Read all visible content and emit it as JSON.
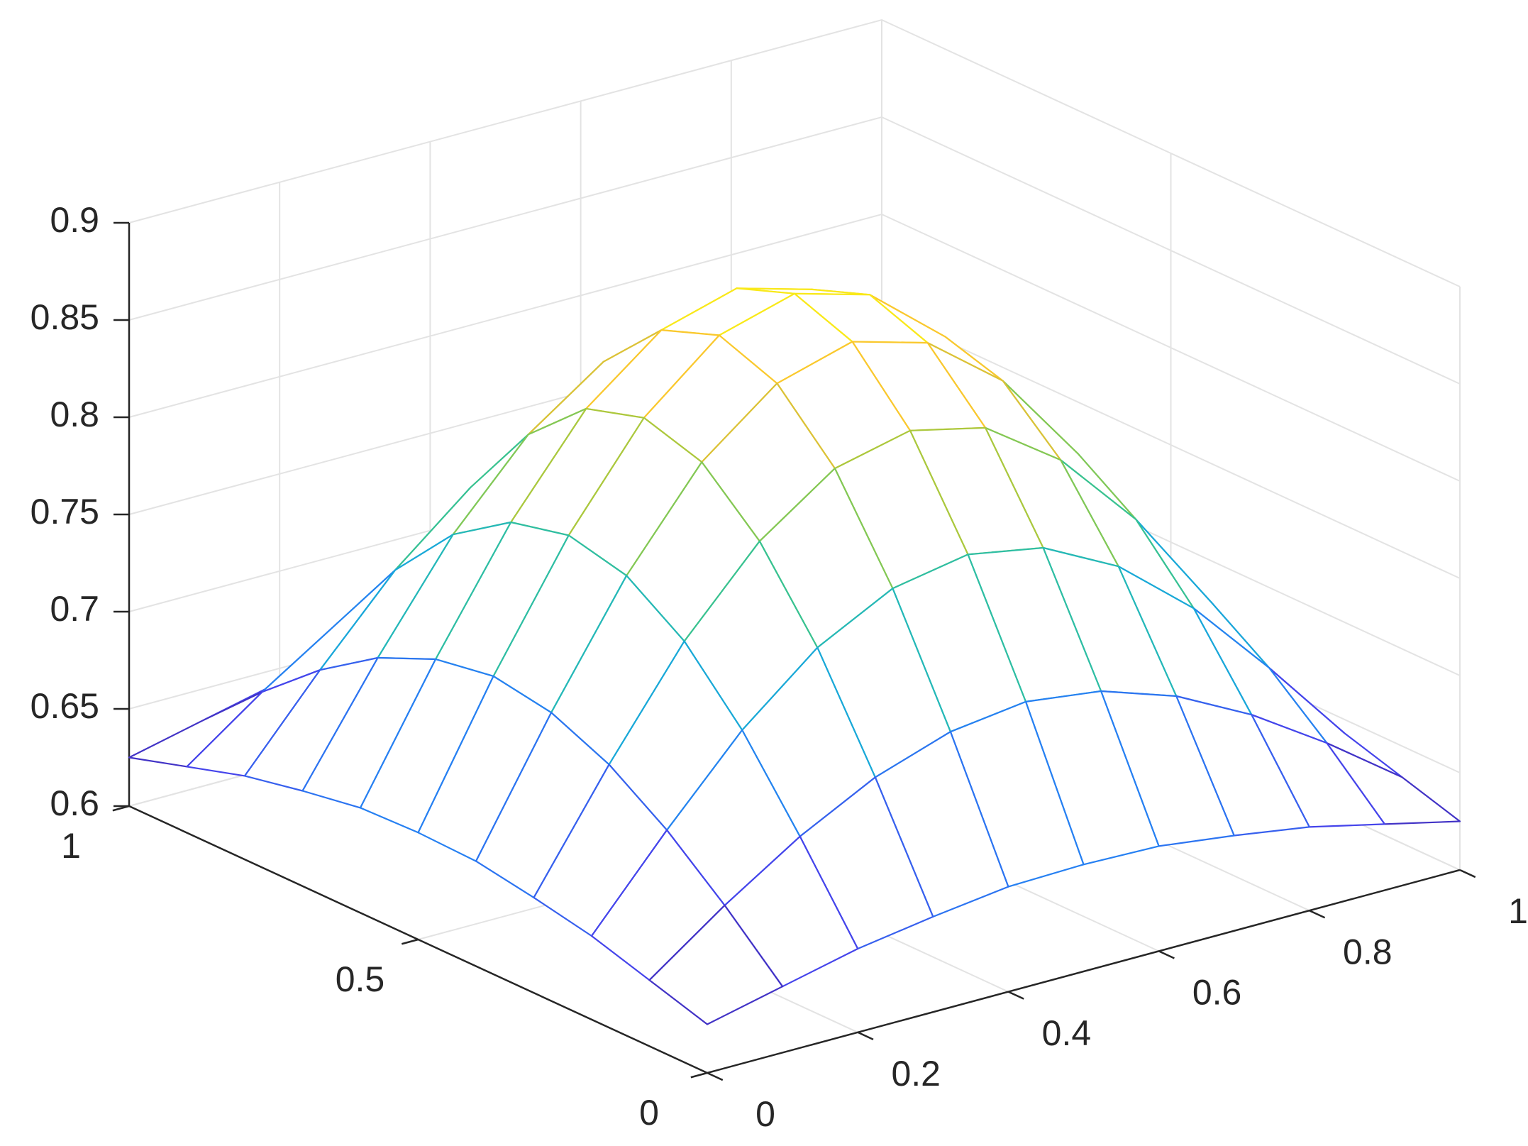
{
  "chart_data": {
    "type": "mesh",
    "colormap": "parula",
    "grid": true,
    "x": [
      0,
      0.1,
      0.2,
      0.3,
      0.4,
      0.5,
      0.6,
      0.7,
      0.8,
      0.9,
      1
    ],
    "y": [
      0,
      0.1,
      0.2,
      0.3,
      0.4,
      0.5,
      0.6,
      0.7,
      0.8,
      0.9,
      1
    ],
    "z": [
      [
        0.625,
        0.634,
        0.643,
        0.649,
        0.654,
        0.655,
        0.654,
        0.649,
        0.643,
        0.634,
        0.625
      ],
      [
        0.634,
        0.662,
        0.687,
        0.707,
        0.72,
        0.725,
        0.72,
        0.707,
        0.687,
        0.662,
        0.634
      ],
      [
        0.643,
        0.687,
        0.728,
        0.76,
        0.78,
        0.787,
        0.78,
        0.76,
        0.728,
        0.687,
        0.643
      ],
      [
        0.649,
        0.707,
        0.76,
        0.801,
        0.828,
        0.837,
        0.828,
        0.801,
        0.76,
        0.707,
        0.649
      ],
      [
        0.654,
        0.72,
        0.78,
        0.828,
        0.858,
        0.869,
        0.858,
        0.828,
        0.78,
        0.72,
        0.654
      ],
      [
        0.655,
        0.725,
        0.787,
        0.837,
        0.869,
        0.88,
        0.869,
        0.837,
        0.787,
        0.725,
        0.655
      ],
      [
        0.654,
        0.72,
        0.78,
        0.828,
        0.858,
        0.869,
        0.858,
        0.828,
        0.78,
        0.72,
        0.654
      ],
      [
        0.649,
        0.707,
        0.76,
        0.801,
        0.828,
        0.837,
        0.828,
        0.801,
        0.76,
        0.707,
        0.649
      ],
      [
        0.643,
        0.687,
        0.728,
        0.76,
        0.78,
        0.787,
        0.78,
        0.76,
        0.728,
        0.687,
        0.643
      ],
      [
        0.634,
        0.662,
        0.687,
        0.707,
        0.72,
        0.725,
        0.72,
        0.707,
        0.687,
        0.662,
        0.634
      ],
      [
        0.625,
        0.634,
        0.643,
        0.649,
        0.654,
        0.655,
        0.654,
        0.649,
        0.643,
        0.634,
        0.625
      ]
    ],
    "xlim": [
      0,
      1
    ],
    "ylim": [
      0,
      1
    ],
    "zlim": [
      0.6,
      0.9
    ],
    "xticks": [
      0,
      0.2,
      0.4,
      0.6,
      0.8,
      1
    ],
    "yticks": [
      0,
      0.5,
      1
    ],
    "zticks": [
      0.6,
      0.65,
      0.7,
      0.75,
      0.8,
      0.85,
      0.9
    ]
  }
}
